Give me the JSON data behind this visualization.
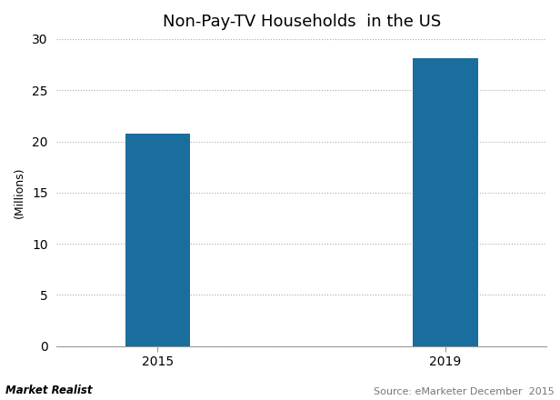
{
  "title": "Non-Pay-TV Households  in the US",
  "categories": [
    "2015",
    "2019"
  ],
  "values": [
    20.8,
    28.1
  ],
  "bar_color": "#1a6e9e",
  "ylabel": "(Millions)",
  "ylim": [
    0,
    30
  ],
  "yticks": [
    0,
    5,
    10,
    15,
    20,
    25,
    30
  ],
  "bar_width": 0.45,
  "background_color": "#ffffff",
  "grid_color": "#aaaaaa",
  "title_fontsize": 13,
  "axis_fontsize": 9,
  "tick_fontsize": 10,
  "footer_left": "Market Realist",
  "footer_right": "Source: eMarketer December  2015"
}
